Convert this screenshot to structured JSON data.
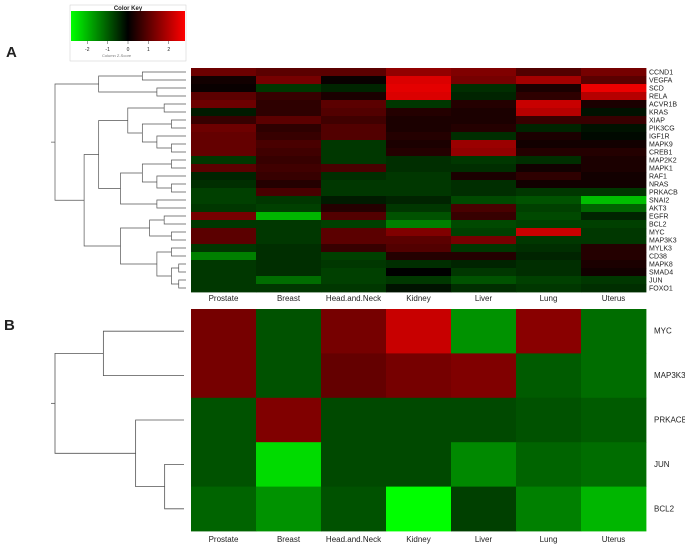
{
  "colors": {
    "high": "#ff0000",
    "mid": "#000000",
    "low": "#00ff00"
  },
  "chart_data": [
    {
      "type": "heatmap",
      "panel_label": "A",
      "color_key": {
        "title": "Color Key",
        "ticks": [
          "-2",
          "-1",
          "0",
          "1",
          "2"
        ],
        "range": [
          -2.8,
          2.8
        ],
        "subtitle": "Column Z-Score"
      },
      "columns": [
        "Prostate",
        "Breast",
        "Head.and.Neck",
        "Kidney",
        "Liver",
        "Lung",
        "Uterus"
      ],
      "rows": [
        "CCND1",
        "VEGFA",
        "SCD",
        "RELA",
        "ACVR1B",
        "KRAS",
        "XIAP",
        "PIK3CG",
        "IGF1R",
        "MAPK9",
        "CREB1",
        "MAP2K2",
        "MAPK1",
        "RAF1",
        "NRAS",
        "PRKACB",
        "SNAI2",
        "AKT3",
        "EGFR",
        "BCL2",
        "MYC",
        "MAP3K3",
        "MYLK3",
        "CD38",
        "MAPK8",
        "SMAD4",
        "JUN",
        "FOXO1"
      ],
      "values": [
        [
          1.2,
          1.0,
          1.0,
          1.6,
          1.4,
          0.9,
          1.3
        ],
        [
          0.2,
          1.3,
          0.1,
          2.4,
          1.3,
          1.8,
          1.0
        ],
        [
          0.1,
          -0.6,
          -0.4,
          2.5,
          -0.5,
          0.3,
          2.6
        ],
        [
          1.0,
          0.6,
          0.3,
          2.4,
          -0.4,
          0.5,
          2.0
        ],
        [
          1.2,
          0.5,
          1.0,
          -0.6,
          0.4,
          2.2,
          0.3
        ],
        [
          -0.3,
          0.5,
          0.9,
          0.4,
          0.3,
          2.0,
          -0.2
        ],
        [
          0.6,
          1.0,
          0.7,
          0.3,
          0.3,
          0.6,
          0.6
        ],
        [
          1.2,
          0.5,
          0.9,
          0.3,
          0.4,
          -0.4,
          -0.2
        ],
        [
          1.1,
          0.6,
          0.9,
          0.4,
          -0.5,
          0.3,
          -0.1
        ],
        [
          1.1,
          0.8,
          -0.6,
          0.3,
          1.7,
          0.2,
          0.2
        ],
        [
          1.1,
          0.7,
          -0.6,
          0.4,
          1.6,
          0.4,
          0.4
        ],
        [
          -0.6,
          0.6,
          -0.6,
          -0.5,
          -0.6,
          -0.5,
          0.3
        ],
        [
          1.0,
          0.7,
          0.8,
          -0.5,
          -0.5,
          0.2,
          0.3
        ],
        [
          -0.4,
          0.6,
          -0.5,
          -0.6,
          0.3,
          0.5,
          0.2
        ],
        [
          -0.5,
          0.4,
          -0.6,
          -0.6,
          -0.5,
          0.2,
          0.2
        ],
        [
          -0.7,
          0.8,
          -0.6,
          -0.6,
          -0.5,
          -0.6,
          -0.6
        ],
        [
          -0.7,
          -0.6,
          -0.3,
          -0.4,
          -0.8,
          -0.9,
          -2.1
        ],
        [
          -0.6,
          -0.7,
          0.4,
          -0.6,
          0.8,
          -0.7,
          -1.1
        ],
        [
          1.3,
          -2.0,
          0.9,
          -0.9,
          0.6,
          -0.8,
          -0.4
        ],
        [
          -0.6,
          -0.6,
          -0.7,
          -1.4,
          -0.8,
          -0.7,
          -0.7
        ],
        [
          1.0,
          -0.6,
          1.0,
          1.4,
          -0.7,
          2.2,
          -0.6
        ],
        [
          1.0,
          -0.6,
          1.0,
          1.0,
          1.3,
          -0.6,
          -0.6
        ],
        [
          -0.6,
          -0.5,
          0.6,
          0.9,
          -0.6,
          -0.5,
          0.4
        ],
        [
          -1.4,
          -0.5,
          -0.7,
          0.4,
          0.4,
          -0.4,
          0.4
        ],
        [
          -0.6,
          -0.5,
          -0.6,
          -0.5,
          -0.4,
          -0.5,
          0.3
        ],
        [
          -0.6,
          -0.5,
          -0.7,
          0.0,
          -0.6,
          -0.5,
          0.2
        ],
        [
          -0.6,
          -1.2,
          -0.7,
          -0.6,
          -0.9,
          -0.7,
          -0.6
        ],
        [
          -0.6,
          -0.6,
          -0.6,
          -0.2,
          -0.5,
          -0.6,
          -0.5
        ]
      ]
    },
    {
      "type": "heatmap",
      "panel_label": "B",
      "columns": [
        "Prostate",
        "Breast",
        "Head.and.Neck",
        "Kidney",
        "Liver",
        "Lung",
        "Uterus"
      ],
      "rows": [
        "MYC",
        "MAP3K3",
        "PRKACB",
        "JUN",
        "BCL2"
      ],
      "values": [
        [
          1.3,
          -0.9,
          1.3,
          2.2,
          -1.6,
          1.5,
          -1.2
        ],
        [
          1.3,
          -0.9,
          1.1,
          1.3,
          1.4,
          -1.0,
          -1.2
        ],
        [
          -0.9,
          1.4,
          -0.8,
          -0.8,
          -0.8,
          -0.9,
          -1.0
        ],
        [
          -0.9,
          -2.4,
          -0.8,
          -0.8,
          -1.5,
          -1.1,
          -1.2
        ],
        [
          -1.1,
          -1.6,
          -0.9,
          -2.8,
          -0.7,
          -1.4,
          -2.0
        ]
      ]
    }
  ]
}
